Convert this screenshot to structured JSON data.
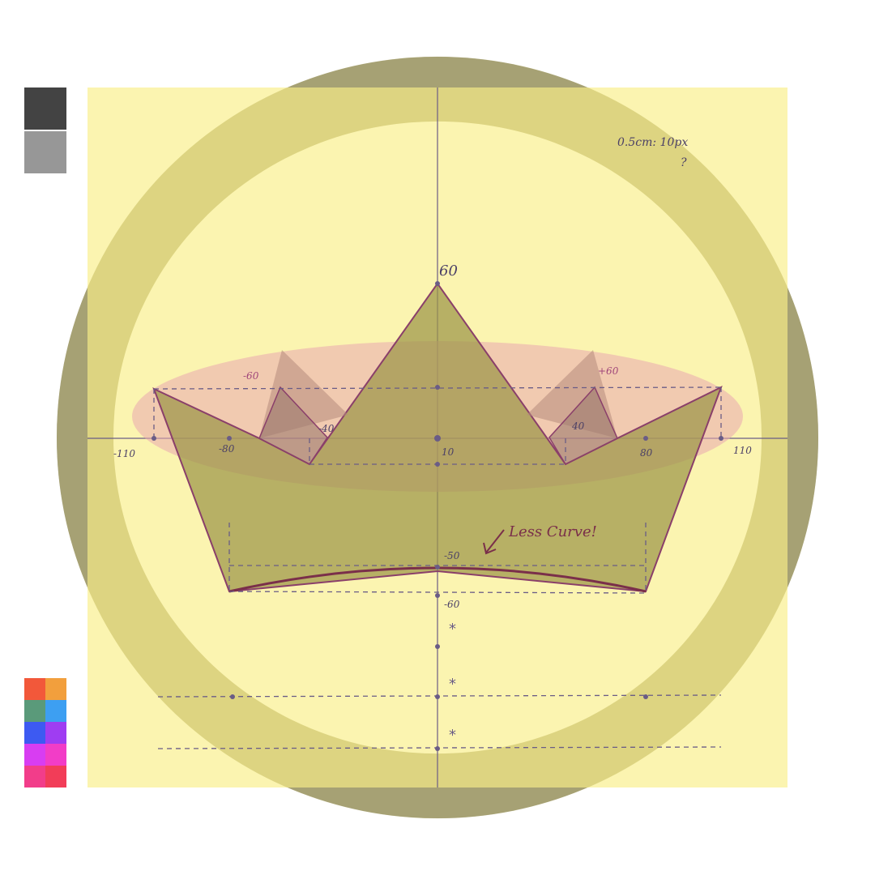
{
  "sheet": {
    "scale_note": "0.5cm: 10px",
    "scale_mark": "?"
  },
  "axis": {
    "x_ticks": [
      {
        "label": "-110",
        "value": -110
      },
      {
        "label": "-80",
        "value": -80
      },
      {
        "label": "10",
        "value": 10
      },
      {
        "label": "80",
        "value": 80
      },
      {
        "label": "110",
        "value": 110
      }
    ],
    "y_ticks": [
      {
        "label": "60",
        "value": 60
      },
      {
        "label": "-50",
        "value": -50
      },
      {
        "label": "-60",
        "value": -60
      }
    ]
  },
  "annotations": {
    "peak_left": "-60",
    "peak_right": "+60",
    "inner_left": "-40",
    "inner_right": "40",
    "note": "Less Curve!",
    "cross_marks": [
      "*",
      "*",
      "*"
    ]
  },
  "colors": {
    "sheet_background": "#fbf4b0",
    "crown_fill": "#b3ab5f",
    "crown_outline": "#8a3f6a",
    "pink_ellipse": "#e9b3b5",
    "outer_ring": "#979797",
    "inner_ring": "#d8d18a",
    "guide_line": "#6a5c86"
  },
  "palette": {
    "grays": [
      "#434343",
      "#979797"
    ],
    "colors": [
      "#f2583a",
      "#f29f3d",
      "#5a9a7a",
      "#3d9ff2",
      "#3d5af2",
      "#9f3df2",
      "#d83df2",
      "#f23dc7",
      "#f23d8a",
      "#f23d58"
    ]
  }
}
